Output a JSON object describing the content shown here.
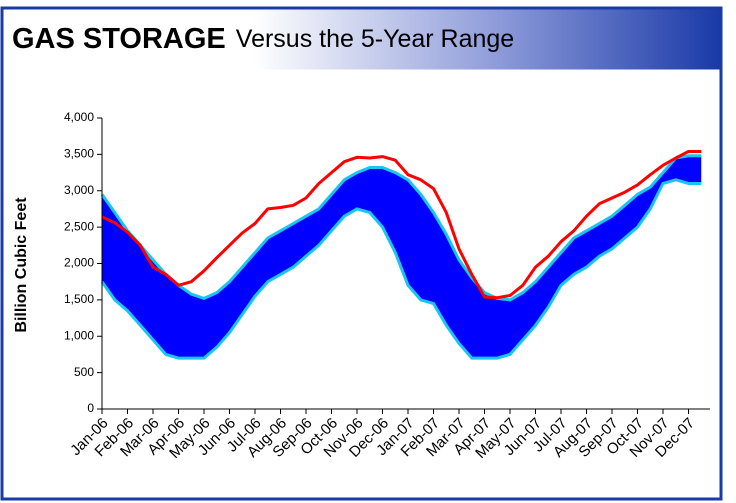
{
  "chart_data": {
    "type": "line",
    "title": "GAS STORAGE",
    "subtitle": "Versus the 5-Year Range",
    "ylabel": "Billion Cubic Feet",
    "categories": [
      "Jan-06",
      null,
      "Feb-06",
      null,
      "Mar-06",
      null,
      "Apr-06",
      null,
      "May-06",
      null,
      "Jun-06",
      null,
      "Jul-06",
      null,
      "Aug-06",
      null,
      "Sep-06",
      null,
      "Oct-06",
      null,
      "Nov-06",
      null,
      "Dec-06",
      null,
      "Jan-07",
      null,
      "Feb-07",
      null,
      "Mar-07",
      null,
      "Apr-07",
      null,
      "May-07",
      null,
      "Jun-07",
      null,
      "Jul-07",
      null,
      "Aug-07",
      null,
      "Sep-07",
      null,
      "Oct-07",
      null,
      "Nov-07",
      null,
      "Dec-07",
      null
    ],
    "series": [
      {
        "color": "#ff0000",
        "values": [
          2640,
          2560,
          2430,
          2250,
          1950,
          1850,
          1700,
          1750,
          1900,
          2080,
          2250,
          2420,
          2550,
          2750,
          2770,
          2800,
          2900,
          3100,
          3250,
          3400,
          3460,
          3450,
          3470,
          3420,
          3220,
          3150,
          3030,
          2700,
          2200,
          1850,
          1540,
          1530,
          1560,
          1700,
          1950,
          2100,
          2300,
          2450,
          2650,
          2820,
          2900,
          2980,
          3080,
          3220,
          3350,
          3450,
          3540,
          3540
        ]
      }
    ],
    "range": {
      "color": "#0000ff",
      "edge_color": "#19c6f0",
      "upper": [
        2950,
        2700,
        2450,
        2250,
        2050,
        1850,
        1700,
        1580,
        1520,
        1600,
        1750,
        1950,
        2150,
        2350,
        2450,
        2550,
        2650,
        2750,
        2950,
        3150,
        3250,
        3320,
        3320,
        3250,
        3150,
        2950,
        2700,
        2400,
        2050,
        1800,
        1600,
        1520,
        1500,
        1600,
        1750,
        1950,
        2150,
        2350,
        2450,
        2550,
        2650,
        2800,
        2950,
        3050,
        3250,
        3450,
        3480,
        3480
      ],
      "lower": [
        1750,
        1500,
        1350,
        1150,
        950,
        750,
        700,
        700,
        700,
        850,
        1050,
        1300,
        1550,
        1750,
        1850,
        1950,
        2100,
        2250,
        2450,
        2650,
        2750,
        2700,
        2500,
        2150,
        1700,
        1500,
        1450,
        1150,
        900,
        700,
        700,
        700,
        750,
        950,
        1150,
        1400,
        1700,
        1850,
        1950,
        2100,
        2200,
        2350,
        2500,
        2750,
        3100,
        3150,
        3100,
        3100
      ]
    },
    "ylim": [
      0,
      4000
    ],
    "yticks": [
      0,
      500,
      {
        "value": 1000,
        "label": "1,000"
      },
      {
        "value": 1500,
        "label": "1,500"
      },
      {
        "value": 2000,
        "label": "2,000"
      },
      {
        "value": 2500,
        "label": "2,500"
      },
      {
        "value": 3000,
        "label": "3,000"
      },
      {
        "value": 3500,
        "label": "3,500"
      },
      {
        "value": 4000,
        "label": "4,000"
      }
    ],
    "grid": false
  }
}
